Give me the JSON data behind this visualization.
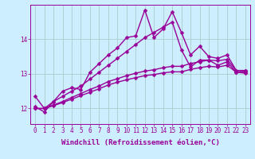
{
  "background_color": "#cceeff",
  "grid_color": "#aacccc",
  "line_color": "#990099",
  "marker": "D",
  "marker_size": 2.5,
  "linewidth": 1.0,
  "xlabel": "Windchill (Refroidissement éolien,°C)",
  "xlabel_fontsize": 6.5,
  "tick_fontsize": 5.5,
  "ytick_labels": [
    "12",
    "13",
    "14"
  ],
  "ytick_positions": [
    12,
    13,
    14
  ],
  "ylim": [
    11.55,
    15.0
  ],
  "xlim": [
    -0.5,
    23.5
  ],
  "xtick_positions": [
    0,
    1,
    2,
    3,
    4,
    5,
    6,
    7,
    8,
    9,
    10,
    11,
    12,
    13,
    14,
    15,
    16,
    17,
    18,
    19,
    20,
    21,
    22,
    23
  ],
  "series": [
    [
      12.35,
      12.0,
      12.2,
      12.5,
      12.6,
      12.55,
      13.05,
      13.3,
      13.55,
      13.75,
      14.05,
      14.1,
      14.85,
      14.05,
      14.3,
      14.8,
      14.2,
      13.55,
      13.8,
      13.5,
      13.45,
      13.55,
      13.1,
      13.1
    ],
    [
      12.05,
      11.9,
      12.2,
      12.35,
      12.5,
      12.65,
      12.85,
      13.05,
      13.25,
      13.45,
      13.65,
      13.85,
      14.05,
      14.2,
      14.35,
      14.5,
      13.7,
      13.2,
      13.4,
      13.4,
      13.25,
      13.35,
      13.05,
      13.05
    ],
    [
      12.0,
      12.0,
      12.1,
      12.2,
      12.32,
      12.43,
      12.55,
      12.65,
      12.78,
      12.86,
      12.95,
      13.02,
      13.08,
      13.12,
      13.18,
      13.22,
      13.22,
      13.3,
      13.35,
      13.4,
      13.38,
      13.42,
      13.1,
      13.08
    ],
    [
      12.0,
      12.0,
      12.08,
      12.17,
      12.27,
      12.37,
      12.47,
      12.57,
      12.68,
      12.76,
      12.83,
      12.89,
      12.95,
      12.98,
      13.03,
      13.06,
      13.06,
      13.13,
      13.18,
      13.22,
      13.2,
      13.25,
      13.05,
      13.02
    ]
  ]
}
